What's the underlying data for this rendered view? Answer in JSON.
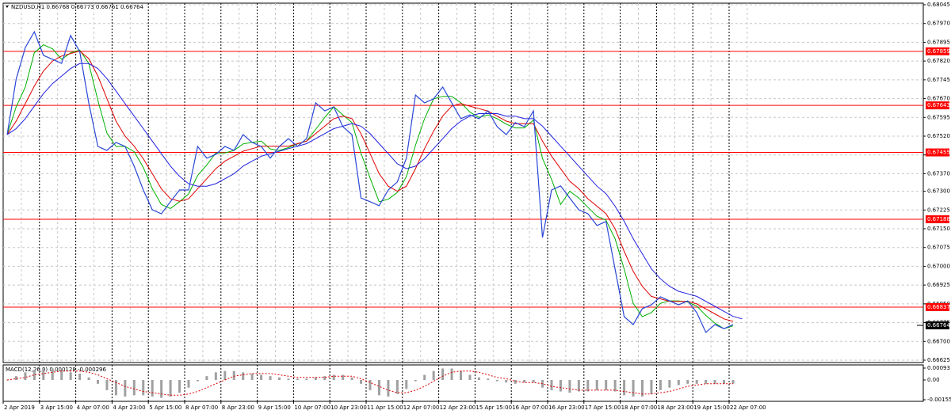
{
  "chart_data": [
    {
      "type": "line",
      "title": "NZDUSD,H1  0.66768 0.66773 0.66761 0.66764",
      "categories": [
        "2 Apr 2019",
        null,
        null,
        null,
        "3 Apr 15:00",
        null,
        null,
        null,
        "4 Apr 07:00",
        null,
        null,
        null,
        "4 Apr 23:00",
        null,
        null,
        null,
        "5 Apr 15:00",
        null,
        null,
        null,
        "8 Apr 07:00",
        null,
        null,
        null,
        "8 Apr 23:00",
        null,
        null,
        null,
        "9 Apr 15:00",
        null,
        null,
        null,
        "10 Apr 07:00",
        null,
        null,
        null,
        "10 Apr 23:00",
        null,
        null,
        null,
        "11 Apr 15:00",
        null,
        null,
        null,
        "12 Apr 07:00",
        null,
        null,
        null,
        "12 Apr 23:00",
        null,
        null,
        null,
        "15 Apr 15:00",
        null,
        null,
        null,
        "16 Apr 07:00",
        null,
        null,
        null,
        "16 Apr 23:00",
        null,
        null,
        null,
        "17 Apr 15:00",
        null,
        null,
        null,
        "18 Apr 07:00",
        null,
        null,
        null,
        "18 Apr 23:00",
        null,
        null,
        null,
        "19 Apr 15:00",
        null,
        null,
        null,
        "22 Apr 07:00",
        null,
        null,
        null
      ],
      "series": [
        {
          "color": "#2a46d6",
          "values": [
            0.67526,
            0.67748,
            0.67874,
            0.67937,
            0.67843,
            0.67827,
            0.67811,
            0.67922,
            0.67858,
            0.67653,
            0.67479,
            0.67463,
            0.67495,
            0.67479,
            0.674,
            0.67305,
            0.67226,
            0.6721,
            0.67258,
            0.67305,
            0.67305,
            0.67479,
            0.67432,
            0.67447,
            0.67479,
            0.67463,
            0.67526,
            0.67495,
            0.67479,
            0.67432,
            0.67479,
            0.6751,
            0.67479,
            0.6751,
            0.67653,
            0.67621,
            0.67637,
            0.67558,
            0.67526,
            0.67273,
            0.67258,
            0.67242,
            0.67305,
            0.67337,
            0.67432,
            0.67684,
            0.67653,
            0.67669,
            0.67716,
            0.67653,
            0.6759,
            0.67605,
            0.6759,
            0.67621,
            0.67558,
            0.67526,
            0.67574,
            0.67558,
            0.67621,
            0.67115,
            0.67305,
            0.67321,
            0.67273,
            0.67226,
            0.6721,
            0.67163,
            0.67179,
            0.66989,
            0.66799,
            0.66767,
            0.66831,
            0.66846,
            0.66878,
            0.66862,
            0.66846,
            0.66862,
            0.66815,
            0.66736,
            0.66767,
            0.66751,
            0.66767,
            null,
            null,
            null
          ]
        },
        {
          "color": "#00b000",
          "values": [
            0.67526,
            0.67637,
            0.67716,
            0.67853,
            0.67885,
            0.67869,
            0.67827,
            0.67853,
            0.67864,
            0.67811,
            0.67663,
            0.67532,
            0.67479,
            0.67479,
            0.67458,
            0.67395,
            0.6731,
            0.67247,
            0.67231,
            0.67258,
            0.67289,
            0.67363,
            0.67405,
            0.67453,
            0.67453,
            0.67463,
            0.67489,
            0.67495,
            0.675,
            0.67469,
            0.67463,
            0.67474,
            0.67489,
            0.675,
            0.67547,
            0.67595,
            0.67637,
            0.67605,
            0.67574,
            0.67452,
            0.67352,
            0.67258,
            0.67268,
            0.67295,
            0.67358,
            0.67484,
            0.6759,
            0.67669,
            0.67679,
            0.67679,
            0.67653,
            0.67616,
            0.67595,
            0.67605,
            0.6759,
            0.67568,
            0.67553,
            0.67553,
            0.67584,
            0.67431,
            0.67347,
            0.67247,
            0.673,
            0.67273,
            0.67236,
            0.672,
            0.67184,
            0.6711,
            0.66989,
            0.66852,
            0.66799,
            0.66815,
            0.66852,
            0.66862,
            0.66862,
            0.66857,
            0.66841,
            0.66804,
            0.66773,
            0.66751,
            0.66762,
            null,
            null,
            null
          ]
        },
        {
          "color": "#e00000",
          "values": [
            0.67526,
            0.6758,
            0.6765,
            0.6772,
            0.6778,
            0.6782,
            0.6784,
            0.6785,
            0.6786,
            0.6783,
            0.6776,
            0.6767,
            0.6758,
            0.6752,
            0.6748,
            0.6743,
            0.6737,
            0.6731,
            0.6727,
            0.6726,
            0.6727,
            0.6731,
            0.6735,
            0.6739,
            0.6742,
            0.6744,
            0.6746,
            0.6747,
            0.6748,
            0.6748,
            0.6748,
            0.6748,
            0.6749,
            0.675,
            0.6753,
            0.6756,
            0.6759,
            0.676,
            0.6759,
            0.6753,
            0.6745,
            0.6737,
            0.6732,
            0.673,
            0.6732,
            0.6739,
            0.6747,
            0.6754,
            0.676,
            0.6764,
            0.6765,
            0.6764,
            0.6763,
            0.6762,
            0.676,
            0.6758,
            0.6757,
            0.6757,
            0.6757,
            0.675,
            0.6744,
            0.6739,
            0.6734,
            0.6731,
            0.6727,
            0.6724,
            0.6721,
            0.6715,
            0.6706,
            0.6698,
            0.6692,
            0.6688,
            0.6687,
            0.6686,
            0.6686,
            0.6686,
            0.6685,
            0.6683,
            0.6681,
            0.6679,
            0.6678,
            null,
            null,
            null
          ]
        },
        {
          "color": "#2020e0",
          "values": [
            0.67526,
            0.6755,
            0.6759,
            0.6764,
            0.6769,
            0.6773,
            0.6776,
            0.6779,
            0.6781,
            0.6781,
            0.6779,
            0.6775,
            0.677,
            0.6765,
            0.676,
            0.6755,
            0.675,
            0.6745,
            0.674,
            0.6736,
            0.6733,
            0.6732,
            0.6732,
            0.6733,
            0.6735,
            0.6737,
            0.674,
            0.6742,
            0.6744,
            0.6745,
            0.6746,
            0.6747,
            0.6748,
            0.6749,
            0.6751,
            0.6753,
            0.6755,
            0.6756,
            0.6757,
            0.6756,
            0.6753,
            0.6749,
            0.6745,
            0.6741,
            0.6739,
            0.674,
            0.6743,
            0.6747,
            0.6751,
            0.6755,
            0.6758,
            0.676,
            0.6761,
            0.6761,
            0.6761,
            0.676,
            0.676,
            0.6759,
            0.6759,
            0.6756,
            0.6752,
            0.6748,
            0.6744,
            0.674,
            0.6736,
            0.6732,
            0.6729,
            0.6724,
            0.6718,
            0.6711,
            0.6705,
            0.6699,
            0.6695,
            0.6692,
            0.669,
            0.6689,
            0.6688,
            0.6686,
            0.6684,
            0.6682,
            0.668,
            0.6679,
            null,
            null
          ]
        }
      ],
      "levels": [
        0.67859,
        0.67643,
        0.67455,
        0.67188,
        0.66837
      ],
      "last_price": {
        "value": 0.66764,
        "label": "0.66764"
      },
      "ylim": [
        0.66625,
        0.68045
      ],
      "yticks": [
        0.68045,
        {
          "value": 0.6797,
          "label": "0.67970"
        },
        0.67895,
        {
          "value": 0.6782,
          "label": "0.67820"
        },
        0.67745,
        {
          "value": 0.6767,
          "label": "0.67670"
        },
        0.67595,
        {
          "value": 0.6752,
          "label": "0.67520"
        },
        0.67445,
        {
          "value": 0.6737,
          "label": "0.67370"
        },
        {
          "value": 0.673,
          "label": "0.67300"
        },
        0.67225,
        {
          "value": 0.6715,
          "label": "0.67150"
        },
        0.67075,
        {
          "value": 0.67,
          "label": "0.67000"
        },
        0.66925,
        {
          "value": 0.6685,
          "label": "0.66850"
        },
        0.66775,
        {
          "value": 0.667,
          "label": "0.66700"
        },
        0.66625
      ],
      "grid": true
    },
    {
      "type": "macd",
      "title": "MACD(12,26,9) 0.000128 -0.000296",
      "series": [
        {
          "color": "#a0a0a0",
          "values": [
            0,
            0.0003,
            0.0006,
            0.0008,
            0.0009,
            0.0009,
            0.0008,
            0.0006,
            0.0005,
            0.0002,
            -0.0003,
            -0.0008,
            -0.0012,
            -0.0013,
            -0.0012,
            -0.0012,
            -0.0013,
            -0.0014,
            -0.0013,
            -0.001,
            -0.0006,
            -0.0001,
            0.0003,
            0.0006,
            0.0007,
            0.0007,
            0.0006,
            0.0005,
            0.0004,
            0.0003,
            0.0002,
            0.0001,
            0.0001,
            0.0001,
            0.0002,
            0.0003,
            0.0004,
            0.0004,
            0.0002,
            -0.0003,
            -0.0008,
            -0.0012,
            -0.0013,
            -0.0011,
            -0.0007,
            -0.0001,
            0.0004,
            0.0007,
            0.0009,
            0.0009,
            0.0007,
            0.0004,
            0.0002,
            0.0001,
            -0.0001,
            -0.0002,
            -0.0003,
            -0.0002,
            -0.0002,
            -0.0006,
            -0.0008,
            -0.0009,
            -0.001,
            -0.0009,
            -0.0009,
            -0.0008,
            -0.0008,
            -0.0009,
            -0.0012,
            -0.0013,
            -0.0013,
            -0.0011,
            -0.0008,
            -0.0006,
            -0.0004,
            -0.0003,
            -0.0003,
            -0.0003,
            -0.0003,
            -0.0003,
            -0.0003,
            null,
            null,
            null
          ]
        },
        {
          "color": "#e00000",
          "values": [
            0,
            0.0001,
            0.0002,
            0.0004,
            0.0005,
            0.0006,
            0.0007,
            0.0007,
            0.0007,
            0.0006,
            0.0004,
            0.0001,
            -0.0002,
            -0.0005,
            -0.0007,
            -0.0009,
            -0.001,
            -0.0011,
            -0.0012,
            -0.0012,
            -0.0011,
            -0.0009,
            -0.0006,
            -0.0003,
            0,
            0.0003,
            0.0004,
            0.0005,
            0.0005,
            0.0005,
            0.0004,
            0.0003,
            0.0002,
            0.0002,
            0.0002,
            0.0002,
            0.0003,
            0.0003,
            0.0003,
            0.0001,
            -0.0002,
            -0.0005,
            -0.0008,
            -0.001,
            -0.001,
            -0.0008,
            -0.0005,
            -0.0001,
            0.0003,
            0.0006,
            0.0007,
            0.0007,
            0.0006,
            0.0004,
            0.0002,
            0.0001,
            -0.0001,
            -0.0002,
            -0.0002,
            -0.0003,
            -0.0005,
            -0.0006,
            -0.0007,
            -0.0008,
            -0.0008,
            -0.0008,
            -0.0008,
            -0.0008,
            -0.0009,
            -0.001,
            -0.0011,
            -0.0011,
            -0.001,
            -0.0009,
            -0.0007,
            -0.0005,
            -0.0004,
            -0.0003,
            -0.0003,
            -0.0003,
            -0.0003,
            null,
            null,
            null
          ]
        }
      ],
      "ylim": [
        -0.001551,
        0.00093
      ],
      "yticks": [
        0.00093,
        {
          "value": 0,
          "label": "0.00"
        },
        -0.001551
      ]
    }
  ]
}
